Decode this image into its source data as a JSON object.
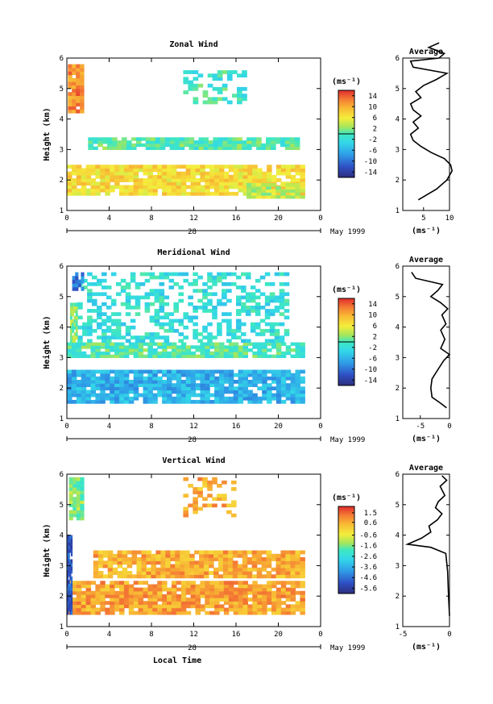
{
  "figure": {
    "x_axis_label": "Local Time",
    "date_label": "May 1999",
    "day_label": "28",
    "units": "(ms⁻¹)",
    "average_units": "(ms⁻¹)"
  },
  "chart_data": [
    {
      "type": "heatmap",
      "title": "Zonal Wind",
      "ylabel": "Height (km)",
      "xlabel": "",
      "x_ticks": [
        "0",
        "4",
        "8",
        "12",
        "16",
        "20",
        "0"
      ],
      "y_ticks": [
        "1",
        "2",
        "3",
        "4",
        "5",
        "6"
      ],
      "xlim": [
        0,
        24
      ],
      "ylim": [
        1,
        6
      ],
      "colorbar": {
        "ticks": [
          "14",
          "10",
          "6",
          "2",
          "-2",
          "-6",
          "-10",
          "-14"
        ],
        "range": [
          -16,
          16
        ],
        "zero_line": 0
      },
      "regions": [
        {
          "name": "low layer",
          "x": [
            0,
            22.5
          ],
          "y": [
            1.5,
            2.5
          ],
          "value": 7
        },
        {
          "name": "low-right patch",
          "x": [
            17,
            22.5
          ],
          "y": [
            1.4,
            1.9
          ],
          "value": 4
        },
        {
          "name": "early burst",
          "x": [
            0.1,
            1.6
          ],
          "y": [
            4.2,
            5.8
          ],
          "value": 12
        },
        {
          "name": "mid-level",
          "x": [
            2,
            22
          ],
          "y": [
            3.0,
            3.4
          ],
          "value": 0
        },
        {
          "name": "upper patches",
          "x": [
            11,
            17
          ],
          "y": [
            4.5,
            5.6
          ],
          "value": -1
        }
      ],
      "average": {
        "title": "Average",
        "xlim": [
          1,
          10
        ],
        "x_ticks": [
          "5",
          "10"
        ],
        "y_ticks": [
          "1",
          "2",
          "3",
          "4",
          "5",
          "6"
        ],
        "profile": [
          {
            "h": 1.35,
            "v": 4.0
          },
          {
            "h": 1.5,
            "v": 5.5
          },
          {
            "h": 1.7,
            "v": 7.5
          },
          {
            "h": 2.0,
            "v": 9.5
          },
          {
            "h": 2.3,
            "v": 10.5
          },
          {
            "h": 2.5,
            "v": 10.2
          },
          {
            "h": 2.7,
            "v": 9.0
          },
          {
            "h": 2.9,
            "v": 6.5
          },
          {
            "h": 3.1,
            "v": 4.5
          },
          {
            "h": 3.3,
            "v": 3.0
          },
          {
            "h": 3.5,
            "v": 2.5
          },
          {
            "h": 3.7,
            "v": 4.0
          },
          {
            "h": 3.9,
            "v": 3.0
          },
          {
            "h": 4.1,
            "v": 4.5
          },
          {
            "h": 4.3,
            "v": 3.0
          },
          {
            "h": 4.5,
            "v": 2.5
          },
          {
            "h": 4.7,
            "v": 4.5
          },
          {
            "h": 4.9,
            "v": 3.5
          },
          {
            "h": 5.1,
            "v": 5.0
          },
          {
            "h": 5.3,
            "v": 7.5
          },
          {
            "h": 5.5,
            "v": 9.5
          },
          {
            "h": 5.7,
            "v": 3.0
          },
          {
            "h": 5.9,
            "v": 2.5
          },
          {
            "h": 6.0,
            "v": 8.0
          },
          {
            "h": 6.15,
            "v": 9.0
          },
          {
            "h": 6.35,
            "v": 6.0
          },
          {
            "h": 6.5,
            "v": 8.0
          }
        ]
      }
    },
    {
      "type": "heatmap",
      "title": "Meridional Wind",
      "ylabel": "Height (km)",
      "xlabel": "",
      "x_ticks": [
        "0",
        "4",
        "8",
        "12",
        "16",
        "20",
        "0"
      ],
      "y_ticks": [
        "1",
        "2",
        "3",
        "4",
        "5",
        "6"
      ],
      "xlim": [
        0,
        24
      ],
      "ylim": [
        1,
        6
      ],
      "colorbar": {
        "ticks": [
          "14",
          "10",
          "6",
          "2",
          "-2",
          "-6",
          "-10",
          "-14"
        ],
        "range": [
          -16,
          16
        ],
        "zero_line": 0
      },
      "regions": [
        {
          "name": "low layer",
          "x": [
            0,
            22.5
          ],
          "y": [
            1.5,
            2.6
          ],
          "value": -6
        },
        {
          "name": "mid-level",
          "x": [
            0,
            22.5
          ],
          "y": [
            3.0,
            3.5
          ],
          "value": 0
        },
        {
          "name": "scattered upper",
          "x": [
            1,
            21
          ],
          "y": [
            3.5,
            5.8
          ],
          "value": -2
        },
        {
          "name": "early burst",
          "x": [
            0.5,
            1.6
          ],
          "y": [
            5.2,
            5.8
          ],
          "value": -10
        },
        {
          "name": "early edge",
          "x": [
            0.3,
            1.0
          ],
          "y": [
            3.5,
            4.8
          ],
          "value": 2
        }
      ],
      "average": {
        "title": "Average",
        "xlim": [
          -8,
          0
        ],
        "x_ticks": [
          "-5",
          "0"
        ],
        "y_ticks": [
          "1",
          "2",
          "3",
          "4",
          "5",
          "6"
        ],
        "profile": [
          {
            "h": 1.35,
            "v": -0.5
          },
          {
            "h": 1.5,
            "v": -1.5
          },
          {
            "h": 1.7,
            "v": -3.0
          },
          {
            "h": 2.0,
            "v": -3.2
          },
          {
            "h": 2.3,
            "v": -3.0
          },
          {
            "h": 2.6,
            "v": -2.0
          },
          {
            "h": 2.9,
            "v": -1.0
          },
          {
            "h": 3.1,
            "v": 0.0
          },
          {
            "h": 3.3,
            "v": -1.5
          },
          {
            "h": 3.6,
            "v": -0.8
          },
          {
            "h": 3.9,
            "v": -1.5
          },
          {
            "h": 4.1,
            "v": -0.6
          },
          {
            "h": 4.4,
            "v": -1.3
          },
          {
            "h": 4.6,
            "v": -0.3
          },
          {
            "h": 4.8,
            "v": -1.5
          },
          {
            "h": 5.0,
            "v": -3.2
          },
          {
            "h": 5.2,
            "v": -2.0
          },
          {
            "h": 5.4,
            "v": -1.2
          },
          {
            "h": 5.6,
            "v": -5.8
          },
          {
            "h": 5.8,
            "v": -6.5
          }
        ]
      }
    },
    {
      "type": "heatmap",
      "title": "Vertical Wind",
      "ylabel": "Height (km)",
      "xlabel": "Local Time",
      "x_ticks": [
        "0",
        "4",
        "8",
        "12",
        "16",
        "20",
        "0"
      ],
      "y_ticks": [
        "1",
        "2",
        "3",
        "4",
        "5",
        "6"
      ],
      "xlim": [
        0,
        24
      ],
      "ylim": [
        1,
        6
      ],
      "colorbar": {
        "ticks": [
          "1.5",
          "0.6",
          "-0.6",
          "-1.6",
          "-2.6",
          "-3.6",
          "-4.6",
          "-5.6"
        ],
        "range": [
          -6.1,
          2.1
        ]
      },
      "regions": [
        {
          "name": "low layer",
          "x": [
            0,
            22.5
          ],
          "y": [
            1.4,
            2.5
          ],
          "value": 0.7
        },
        {
          "name": "mid layer",
          "x": [
            2.5,
            22.5
          ],
          "y": [
            2.6,
            3.5
          ],
          "value": 0.6
        },
        {
          "name": "upper patches",
          "x": [
            11,
            16
          ],
          "y": [
            4.6,
            5.9
          ],
          "value": 0.6
        },
        {
          "name": "early column",
          "x": [
            0.2,
            1.6
          ],
          "y": [
            4.5,
            5.9
          ],
          "value": -1.6
        },
        {
          "name": "early downdraft",
          "x": [
            0,
            0.5
          ],
          "y": [
            1.4,
            4.0
          ],
          "value": -5
        }
      ],
      "average": {
        "title": "Average",
        "xlim": [
          -5,
          0
        ],
        "x_ticks": [
          "-5",
          "0"
        ],
        "y_ticks": [
          "1",
          "2",
          "3",
          "4",
          "5",
          "6"
        ],
        "profile": [
          {
            "h": 1.35,
            "v": 0.0
          },
          {
            "h": 2.0,
            "v": -0.1
          },
          {
            "h": 2.8,
            "v": -0.2
          },
          {
            "h": 3.4,
            "v": -0.4
          },
          {
            "h": 3.6,
            "v": -2.0
          },
          {
            "h": 3.7,
            "v": -4.5
          },
          {
            "h": 3.9,
            "v": -3.0
          },
          {
            "h": 4.1,
            "v": -2.0
          },
          {
            "h": 4.3,
            "v": -2.2
          },
          {
            "h": 4.5,
            "v": -1.3
          },
          {
            "h": 4.7,
            "v": -0.8
          },
          {
            "h": 4.9,
            "v": -1.5
          },
          {
            "h": 5.1,
            "v": -1.2
          },
          {
            "h": 5.3,
            "v": -0.5
          },
          {
            "h": 5.6,
            "v": -1.0
          },
          {
            "h": 5.8,
            "v": -0.3
          },
          {
            "h": 5.95,
            "v": -0.8
          }
        ]
      }
    }
  ]
}
